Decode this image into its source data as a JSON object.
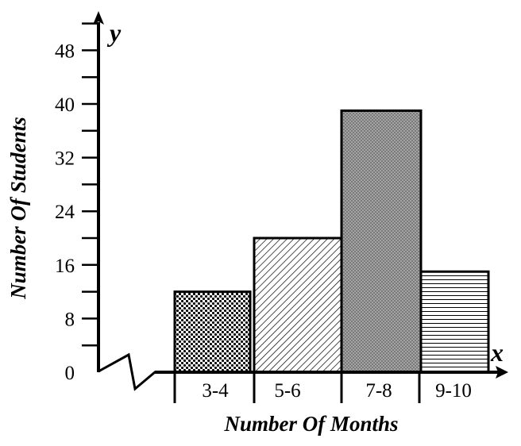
{
  "chart_data": {
    "type": "bar",
    "title": "",
    "xlabel": "Number Of Months",
    "ylabel": "Number Of Students",
    "x_axis_letter": "x",
    "y_axis_letter": "y",
    "categories": [
      "3-4",
      "5-6",
      "7-8",
      "9-10"
    ],
    "values": [
      12,
      20,
      39,
      15
    ],
    "patterns": [
      "checker-dots",
      "diagonal-lines",
      "fine-dots",
      "horizontal-lines"
    ],
    "ylim": [
      0,
      52
    ],
    "yticks": [
      0,
      8,
      16,
      24,
      32,
      40,
      48
    ],
    "grid": false
  }
}
